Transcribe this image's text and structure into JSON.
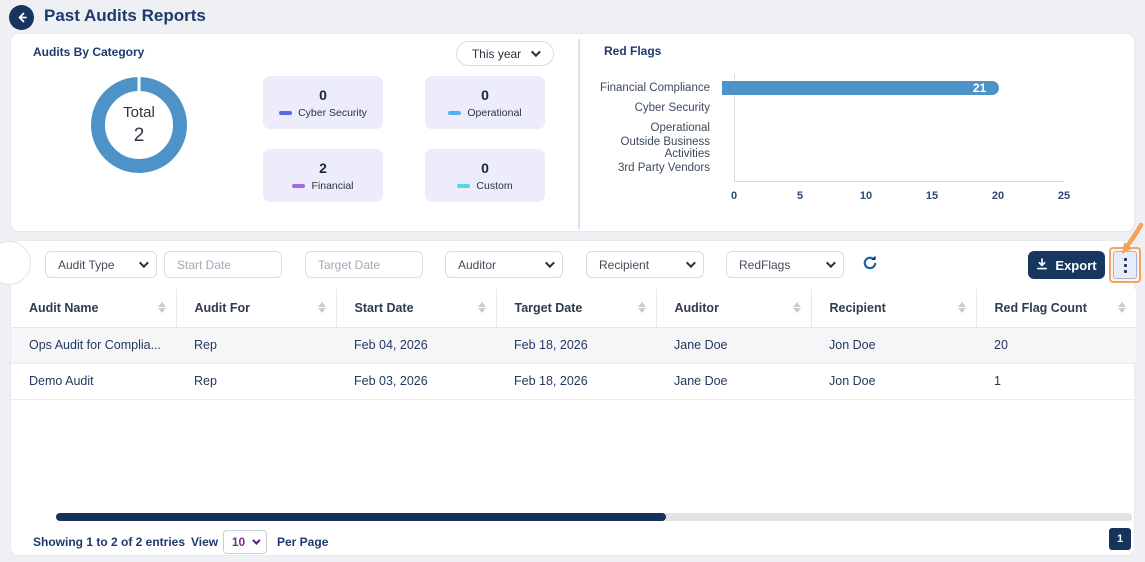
{
  "header": {
    "title": "Past Audits Reports"
  },
  "audits_by_category": {
    "title": "Audits By Category",
    "period_select": "This year",
    "donut": {
      "center_label": "Total",
      "center_value": "2",
      "color": "#4e93c7"
    },
    "cards": [
      {
        "value": "0",
        "label": "Cyber Security",
        "color": "#5b68e3"
      },
      {
        "value": "0",
        "label": "Operational",
        "color": "#56b0e8"
      },
      {
        "value": "2",
        "label": "Financial",
        "color": "#9c6bf0"
      },
      {
        "value": "0",
        "label": "Custom",
        "color": "#55d6e2"
      }
    ]
  },
  "chart_data": {
    "type": "bar",
    "orientation": "horizontal",
    "title": "Red Flags",
    "categories": [
      "Financial Compliance",
      "Cyber Security",
      "Operational",
      "Outside Business Activities",
      "3rd Party Vendors"
    ],
    "values": [
      21,
      0,
      0,
      0,
      0
    ],
    "xlabel": "",
    "ylabel": "",
    "xlim": [
      0,
      25
    ],
    "x_ticks": [
      0,
      5,
      10,
      15,
      20,
      25
    ],
    "bar_color": "#4e93c7",
    "grid": false,
    "legend": false
  },
  "filters": {
    "audit_type_label": "Audit Type",
    "start_date_placeholder": "Start Date",
    "target_date_placeholder": "Target Date",
    "auditor_label": "Auditor",
    "recipient_label": "Recipient",
    "redflags_label": "RedFlags",
    "export_label": "Export"
  },
  "table": {
    "columns": [
      "Audit Name",
      "Audit For",
      "Start Date",
      "Target Date",
      "Auditor",
      "Recipient",
      "Red Flag Count"
    ],
    "rows": [
      [
        "Ops Audit for Complia...",
        "Rep",
        "Feb 04, 2026",
        "Feb 18, 2026",
        "Jane Doe",
        "Jon Doe",
        "20"
      ],
      [
        "Demo Audit",
        "Rep",
        "Feb 03, 2026",
        "Feb 18, 2026",
        "Jane Doe",
        "Jon Doe",
        "1"
      ]
    ]
  },
  "footer": {
    "showing_text": "Showing 1 to 2 of 2 entries",
    "view_label": "View",
    "per_page_value": "10",
    "per_page_label": "Per Page",
    "current_page": "1"
  },
  "colors": {
    "accent_navy": "#17365d",
    "chart_blue": "#4e93c7",
    "annotation_orange": "#f4a15a"
  }
}
